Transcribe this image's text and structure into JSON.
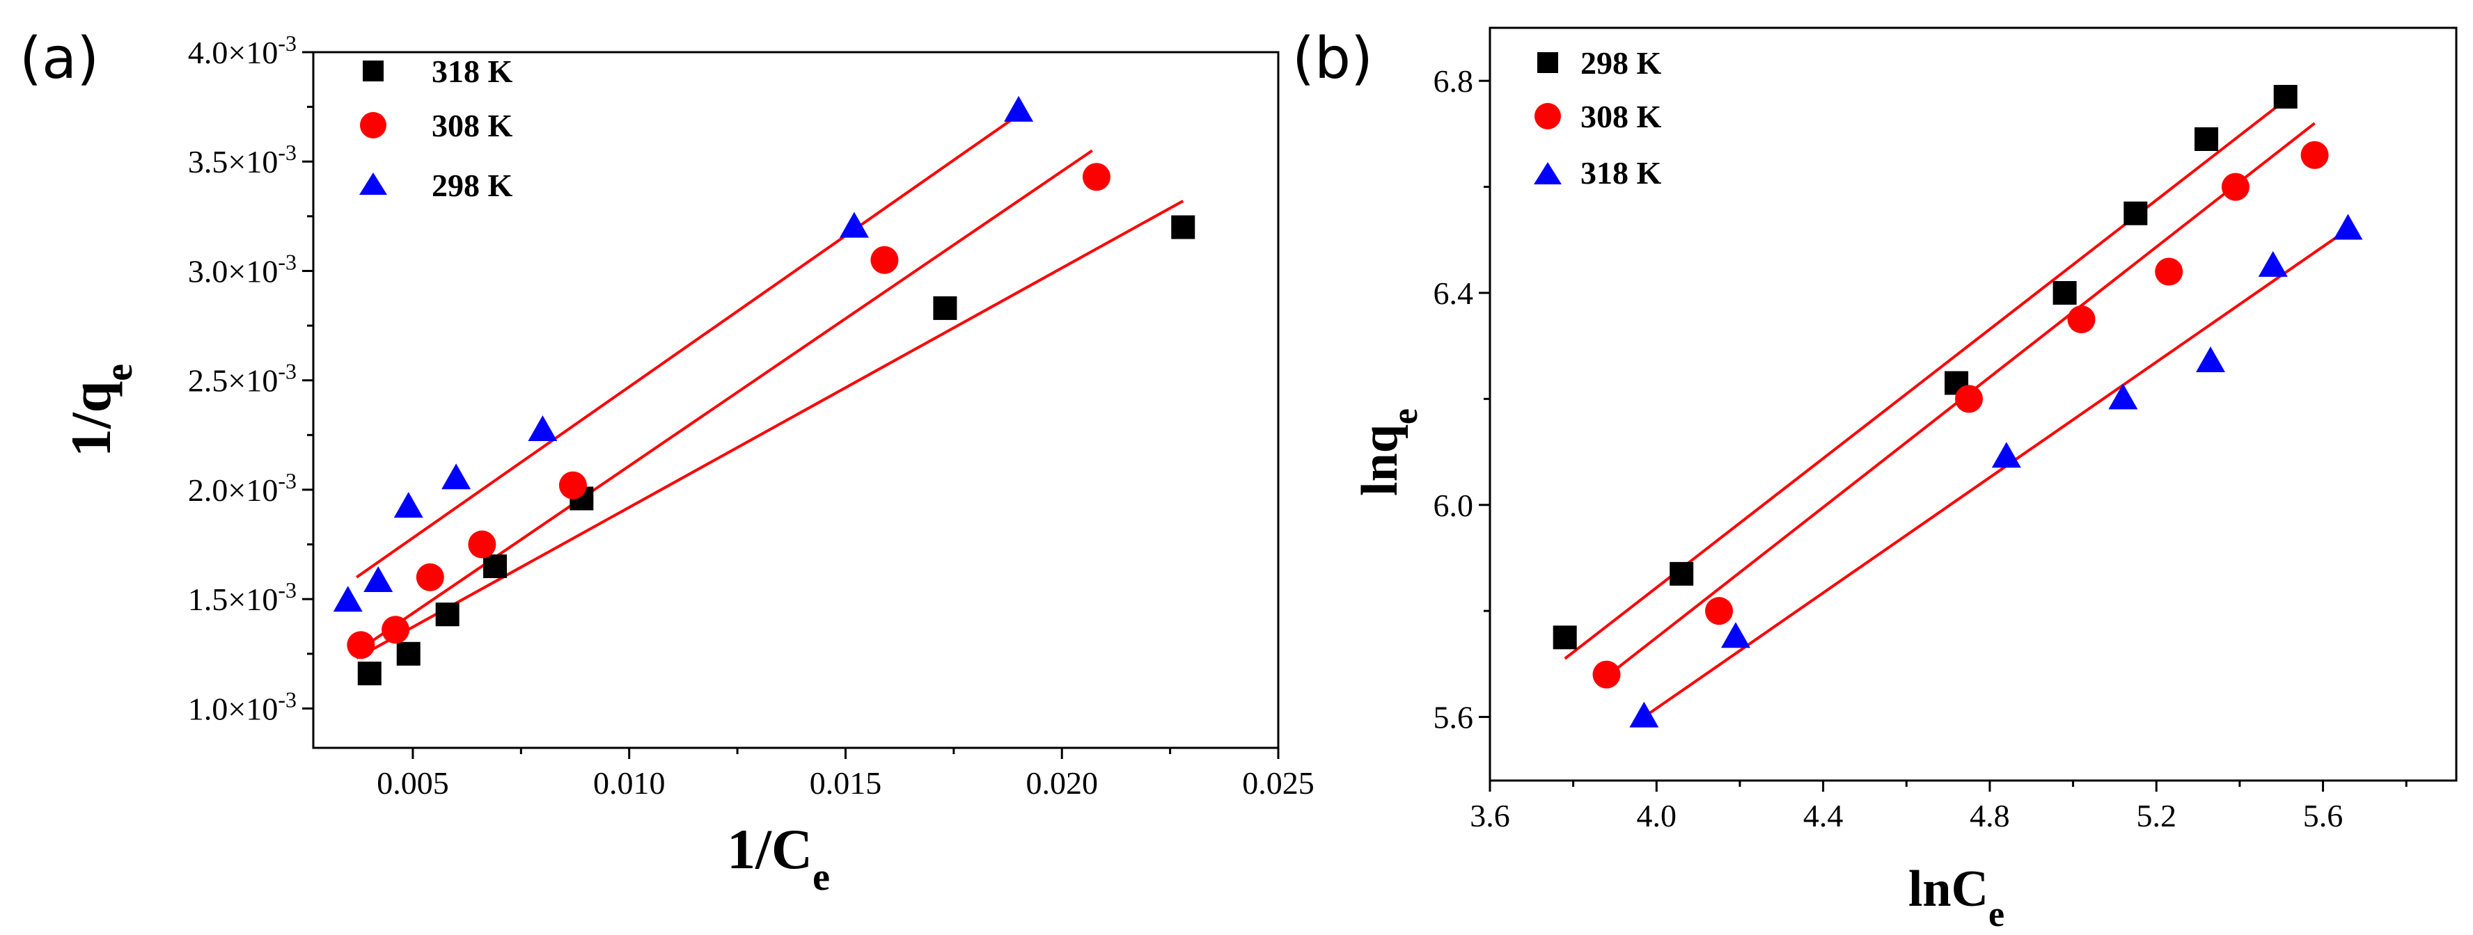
{
  "chart_data": [
    {
      "type": "scatter",
      "panel_label": "(a)",
      "xlabel": "1/C",
      "xlabel_sub": "e",
      "ylabel": "1/q",
      "ylabel_sub": "e",
      "xlim": [
        0.0027,
        0.025
      ],
      "ylim": [
        0.00082,
        0.004
      ],
      "x_ticks": [
        0.005,
        0.01,
        0.015,
        0.02,
        0.025
      ],
      "x_tick_labels": [
        "0.005",
        "0.010",
        "0.015",
        "0.020",
        "0.025"
      ],
      "y_ticks": [
        0.001,
        0.0015,
        0.002,
        0.0025,
        0.003,
        0.0035,
        0.004
      ],
      "y_tick_mantissa": [
        "1.0",
        "1.5",
        "2.0",
        "2.5",
        "3.0",
        "3.5",
        "4.0"
      ],
      "y_tick_exp_base": "×10",
      "y_tick_exp": "-3",
      "legend_position": "top-left",
      "series": [
        {
          "name": "318 K",
          "marker": "square",
          "color": "#000000",
          "x": [
            0.004,
            0.0049,
            0.0058,
            0.0069,
            0.0089,
            0.0173,
            0.0228
          ],
          "y": [
            0.00116,
            0.00125,
            0.00143,
            0.00165,
            0.00196,
            0.00283,
            0.0032
          ],
          "fit": [
            [
              0.0037,
              0.00123
            ],
            [
              0.0228,
              0.00332
            ]
          ]
        },
        {
          "name": "308 K",
          "marker": "circle",
          "color": "#ff0000",
          "x": [
            0.0038,
            0.0046,
            0.0054,
            0.0066,
            0.0087,
            0.0159,
            0.0208
          ],
          "y": [
            0.00129,
            0.00136,
            0.0016,
            0.00175,
            0.00202,
            0.00305,
            0.00343
          ],
          "fit": [
            [
              0.0037,
              0.00126
            ],
            [
              0.0207,
              0.00355
            ]
          ]
        },
        {
          "name": "298 K",
          "marker": "triangle",
          "color": "#0000ff",
          "x": [
            0.0035,
            0.0042,
            0.0049,
            0.006,
            0.008,
            0.0152,
            0.019
          ],
          "y": [
            0.00149,
            0.00158,
            0.00192,
            0.00205,
            0.00227,
            0.0032,
            0.00373
          ],
          "fit": [
            [
              0.0037,
              0.0016
            ],
            [
              0.0189,
              0.0037
            ]
          ]
        }
      ]
    },
    {
      "type": "scatter",
      "panel_label": "(b)",
      "xlabel": "lnC",
      "xlabel_sub": "e",
      "ylabel": "lnq",
      "ylabel_sub": "e",
      "xlim": [
        3.6,
        5.92
      ],
      "ylim": [
        5.48,
        6.9
      ],
      "x_ticks": [
        3.6,
        4.0,
        4.4,
        4.8,
        5.2,
        5.6
      ],
      "x_tick_labels": [
        "3.6",
        "4.0",
        "4.4",
        "4.8",
        "5.2",
        "5.6"
      ],
      "y_ticks": [
        5.6,
        6.0,
        6.4,
        6.8
      ],
      "y_tick_labels": [
        "5.6",
        "6.0",
        "6.4",
        "6.8"
      ],
      "legend_position": "top-left",
      "series": [
        {
          "name": "298 K",
          "marker": "square",
          "color": "#000000",
          "x": [
            3.78,
            4.06,
            4.72,
            4.98,
            5.15,
            5.32,
            5.51
          ],
          "y": [
            5.75,
            5.87,
            6.23,
            6.4,
            6.55,
            6.69,
            6.77
          ],
          "fit": [
            [
              3.78,
              5.71
            ],
            [
              5.52,
              6.77
            ]
          ]
        },
        {
          "name": "308 K",
          "marker": "circle",
          "color": "#ff0000",
          "x": [
            3.88,
            4.15,
            4.75,
            5.02,
            5.23,
            5.39,
            5.58
          ],
          "y": [
            5.68,
            5.8,
            6.2,
            6.35,
            6.44,
            6.6,
            6.66
          ],
          "fit": [
            [
              3.87,
              5.67
            ],
            [
              5.58,
              6.72
            ]
          ]
        },
        {
          "name": "318 K",
          "marker": "triangle",
          "color": "#0000ff",
          "x": [
            3.97,
            4.19,
            4.84,
            5.12,
            5.33,
            5.48,
            5.66
          ],
          "y": [
            5.6,
            5.75,
            6.09,
            6.2,
            6.27,
            6.45,
            6.52
          ],
          "fit": [
            [
              3.97,
              5.6
            ],
            [
              5.66,
              6.52
            ]
          ]
        }
      ]
    }
  ]
}
